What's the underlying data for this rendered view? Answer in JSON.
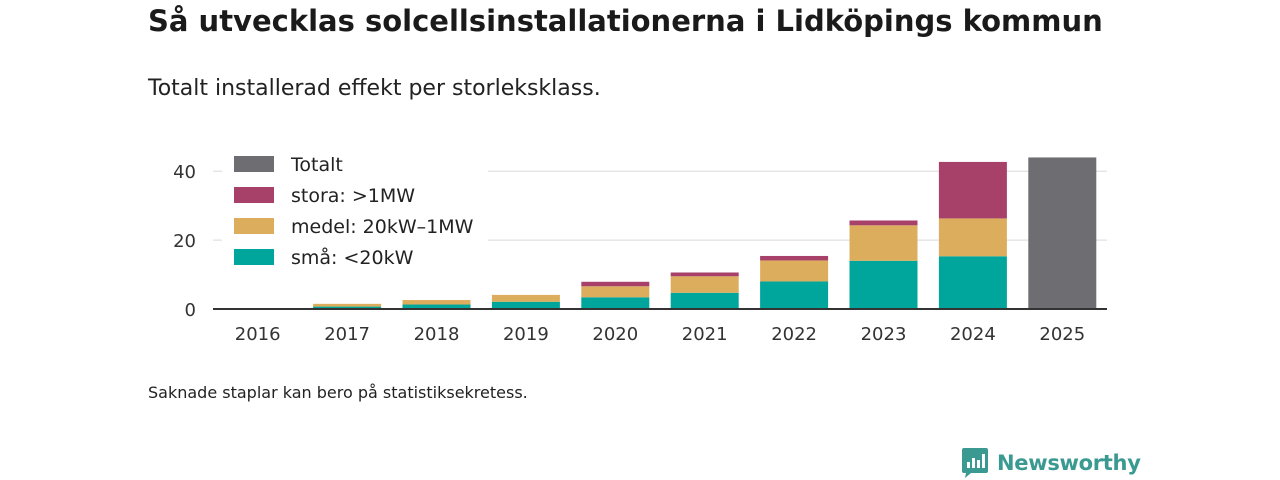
{
  "chart_data": {
    "type": "bar",
    "stacked": true,
    "title": "Så utvecklas solcellsinstallationerna i Lidköpings kommun",
    "subtitle": "Totalt installerad effekt per storleksklass.",
    "categories": [
      "2016",
      "2017",
      "2018",
      "2019",
      "2020",
      "2021",
      "2022",
      "2023",
      "2024",
      "2025"
    ],
    "series": [
      {
        "name": "små: <20kW",
        "color": "#00a69c",
        "values": [
          0.1,
          0.7,
          1.3,
          2.1,
          3.4,
          4.7,
          8.0,
          14.0,
          15.3,
          null
        ]
      },
      {
        "name": "medel: 20kW–1MW",
        "color": "#dcad5c",
        "values": [
          0.1,
          0.8,
          1.3,
          2.0,
          3.2,
          4.8,
          6.1,
          10.3,
          11.0,
          null
        ]
      },
      {
        "name": "stora: >1MW",
        "color": "#a8416a",
        "values": [
          null,
          null,
          null,
          null,
          1.3,
          1.1,
          1.3,
          1.4,
          16.4,
          null
        ]
      },
      {
        "name": "Totalt",
        "color": "#6e6d72",
        "values": [
          null,
          null,
          null,
          null,
          null,
          null,
          null,
          null,
          null,
          44.0
        ]
      }
    ],
    "legend_order": [
      "Totalt",
      "stora: >1MW",
      "medel: 20kW–1MW",
      "små: <20kW"
    ],
    "y_ticks": [
      0,
      20,
      40
    ],
    "ylim": [
      0,
      45
    ],
    "xlabel": "",
    "ylabel": "",
    "grid": true,
    "legend_position": "top-left"
  },
  "footnote": "Saknade staplar kan bero på statistiksekretess.",
  "brand": {
    "name": "Newsworthy",
    "color": "#3a9a91"
  }
}
